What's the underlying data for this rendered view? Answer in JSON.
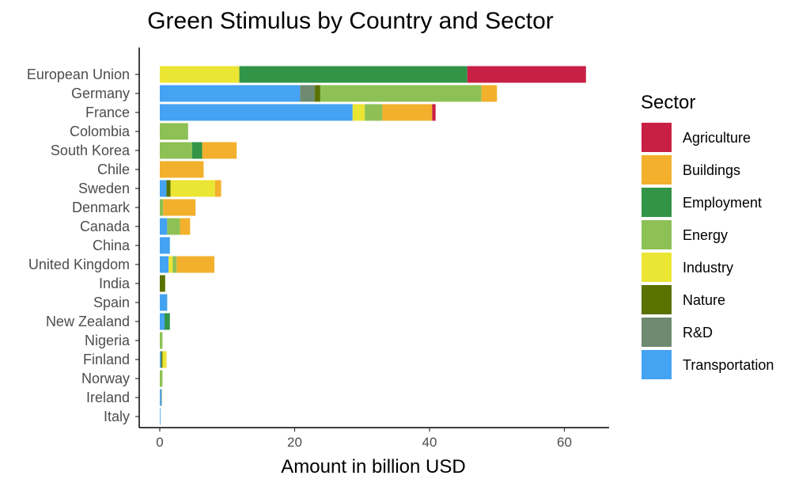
{
  "chart_data": {
    "type": "bar",
    "orientation": "horizontal",
    "stacked": true,
    "title": "Green Stimulus by Country and Sector",
    "xlabel": "Amount in billion USD",
    "ylabel": "",
    "xlim": [
      -3.2,
      66
    ],
    "xticks": [
      0,
      20,
      40,
      60
    ],
    "grid": false,
    "legend_position": "right",
    "legend_title": "Sector",
    "categories": [
      "European Union",
      "Germany",
      "France",
      "Colombia",
      "South Korea",
      "Chile",
      "Sweden",
      "Denmark",
      "Canada",
      "China",
      "United Kingdom",
      "India",
      "Spain",
      "New Zealand",
      "Nigeria",
      "Finland",
      "Norway",
      "Ireland",
      "Italy"
    ],
    "series": [
      {
        "name": "Transportation",
        "color": "#44a3f2",
        "values": [
          0,
          20.8,
          28.6,
          0,
          0,
          0,
          1.0,
          0,
          1.1,
          1.5,
          1.3,
          0,
          1.1,
          0.7,
          0,
          0.2,
          0,
          0.2,
          0.1
        ]
      },
      {
        "name": "R&D",
        "color": "#6e8a70",
        "values": [
          0,
          2.2,
          0,
          0,
          0,
          0,
          0,
          0,
          0,
          0,
          0,
          0,
          0,
          0,
          0,
          0,
          0,
          0.1,
          0
        ]
      },
      {
        "name": "Nature",
        "color": "#5a7200",
        "values": [
          0,
          0.8,
          0,
          0,
          0,
          0,
          0.6,
          0,
          0,
          0,
          0,
          0.8,
          0,
          0,
          0,
          0.2,
          0,
          0,
          0
        ]
      },
      {
        "name": "Industry",
        "color": "#ebe534",
        "values": [
          11.8,
          0,
          1.8,
          0,
          0,
          0,
          6.6,
          0,
          0,
          0,
          0.6,
          0,
          0,
          0,
          0,
          0.6,
          0,
          0,
          0
        ]
      },
      {
        "name": "Energy",
        "color": "#8dc155",
        "values": [
          0,
          23.9,
          2.6,
          4.2,
          4.8,
          0,
          0,
          0.5,
          1.9,
          0,
          0.6,
          0,
          0,
          0,
          0.4,
          0,
          0.4,
          0,
          0
        ]
      },
      {
        "name": "Employment",
        "color": "#329447",
        "values": [
          33.8,
          0,
          0,
          0,
          1.5,
          0,
          0,
          0,
          0,
          0,
          0,
          0,
          0,
          0.8,
          0,
          0,
          0,
          0,
          0
        ]
      },
      {
        "name": "Buildings",
        "color": "#f3b02c",
        "values": [
          0,
          2.3,
          7.4,
          0,
          5.1,
          6.5,
          0.9,
          4.8,
          1.5,
          0,
          5.6,
          0,
          0,
          0,
          0,
          0,
          0,
          0,
          0
        ]
      },
      {
        "name": "Agriculture",
        "color": "#c81f45",
        "values": [
          17.6,
          0,
          0.5,
          0,
          0,
          0,
          0,
          0,
          0,
          0,
          0,
          0,
          0,
          0,
          0,
          0,
          0,
          0,
          0
        ]
      }
    ],
    "legend_order": [
      "Agriculture",
      "Buildings",
      "Employment",
      "Energy",
      "Industry",
      "Nature",
      "R&D",
      "Transportation"
    ]
  }
}
